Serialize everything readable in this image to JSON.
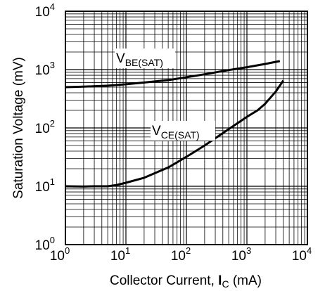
{
  "chart_data": {
    "type": "line",
    "xscale": "log",
    "yscale": "log",
    "xlim": [
      1,
      10000
    ],
    "ylim": [
      1,
      10000
    ],
    "grid": true,
    "xlabel": {
      "text": "Collector Current, ",
      "symbol": "I",
      "subscript": "C",
      "unit": " (mA)"
    },
    "ylabel": "Saturation Voltage (mV)",
    "x_ticks": [
      {
        "base": "10",
        "exp": "0"
      },
      {
        "base": "10",
        "exp": "1"
      },
      {
        "base": "10",
        "exp": "2"
      },
      {
        "base": "10",
        "exp": "3"
      },
      {
        "base": "10",
        "exp": "4"
      }
    ],
    "y_ticks": [
      {
        "base": "10",
        "exp": "0"
      },
      {
        "base": "10",
        "exp": "1"
      },
      {
        "base": "10",
        "exp": "2"
      },
      {
        "base": "10",
        "exp": "3"
      },
      {
        "base": "10",
        "exp": "4"
      }
    ],
    "series": [
      {
        "label_main": "V",
        "label_sub": "BE(SAT)",
        "x": [
          1,
          2,
          5,
          10,
          20,
          50,
          100,
          200,
          500,
          1000,
          2000,
          3500
        ],
        "y": [
          500,
          510,
          530,
          560,
          600,
          660,
          740,
          830,
          980,
          1100,
          1250,
          1400
        ]
      },
      {
        "label_main": "V",
        "label_sub": "CE(SAT)",
        "x": [
          1,
          2,
          3,
          5,
          7,
          10,
          20,
          50,
          100,
          200,
          500,
          1000,
          1500,
          2000,
          3000,
          4000
        ],
        "y": [
          10,
          9.9,
          10,
          10,
          10.5,
          11.5,
          14,
          21,
          32,
          50,
          95,
          155,
          200,
          260,
          420,
          650
        ]
      }
    ]
  }
}
